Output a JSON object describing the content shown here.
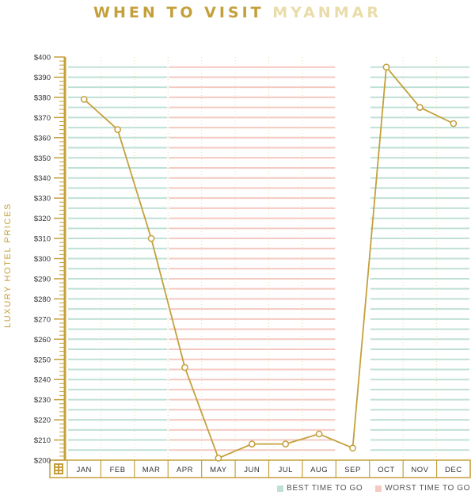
{
  "title": {
    "part1": "WHEN TO VISIT",
    "part2": "MYANMAR"
  },
  "colors": {
    "gold": "#c4a03c",
    "light_gold": "#eadca9",
    "best": "#bfe0d6",
    "worst": "#f4c9c1",
    "axis_text": "#333333"
  },
  "chart_data": {
    "type": "line",
    "ylabel": "LUXURY HOTEL PRICES",
    "ylim": [
      200,
      400
    ],
    "ytick_step": 10,
    "categories": [
      "JAN",
      "FEB",
      "MAR",
      "APR",
      "MAY",
      "JUN",
      "JUL",
      "AUG",
      "SEP",
      "OCT",
      "NOV",
      "DEC"
    ],
    "series": [
      {
        "values": [
          379,
          364,
          310,
          246,
          201,
          208,
          208,
          213,
          206,
          395,
          375,
          367
        ]
      }
    ],
    "season": [
      "best",
      "best",
      "best",
      "worst",
      "worst",
      "worst",
      "worst",
      "worst",
      "none",
      "best",
      "best",
      "best"
    ],
    "legend": [
      {
        "key": "best",
        "label": "BEST TIME TO GO"
      },
      {
        "key": "worst",
        "label": "WORST TIME TO GO"
      }
    ],
    "grid": true,
    "legend_position": "bottom-right"
  },
  "icons": {
    "corner": "building-icon"
  }
}
